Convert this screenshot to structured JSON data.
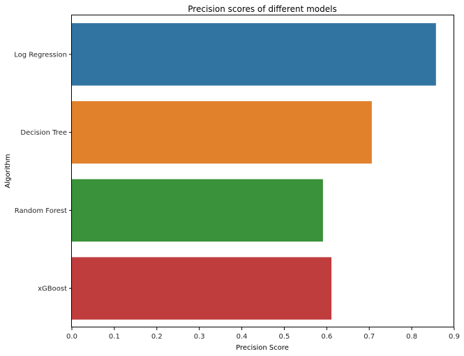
{
  "chart_data": {
    "type": "bar",
    "orientation": "horizontal",
    "title": "Precision scores of different models",
    "xlabel": "Precision Score",
    "ylabel": "Algorithm",
    "categories": [
      "Log Regression",
      "Decision Tree",
      "Random Forest",
      "xGBoost"
    ],
    "values": [
      0.857,
      0.706,
      0.591,
      0.611
    ],
    "colors": [
      "#3274a1",
      "#e1812c",
      "#3a923a",
      "#c03d3e"
    ],
    "xlim": [
      0,
      0.9
    ],
    "xticks": [
      "0.0",
      "0.1",
      "0.2",
      "0.3",
      "0.4",
      "0.5",
      "0.6",
      "0.7",
      "0.8",
      "0.9"
    ],
    "grid": false,
    "legend": "none"
  }
}
